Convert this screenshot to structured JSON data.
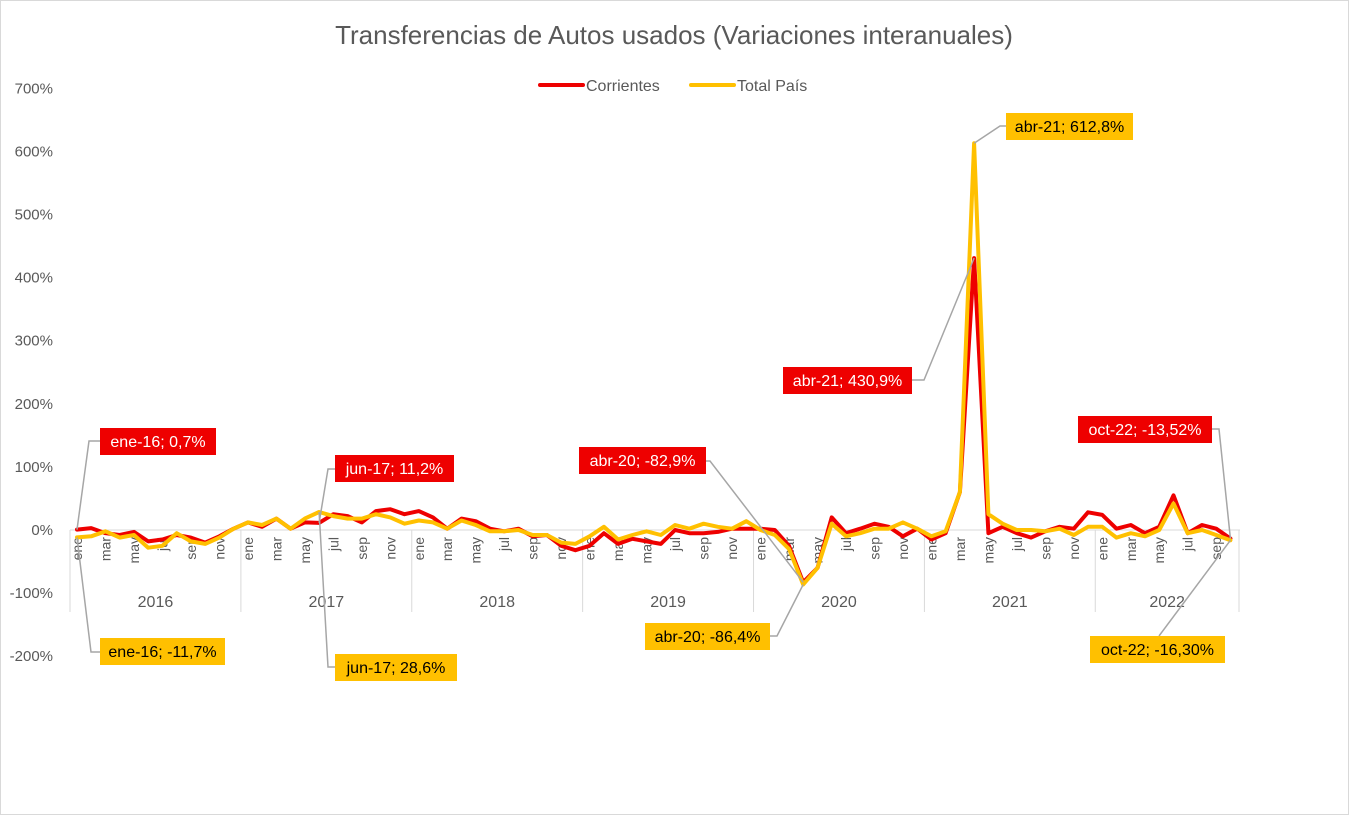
{
  "chart_data": {
    "type": "line",
    "title": "Transferencias de Autos usados (Variaciones interanuales)",
    "yticks": [
      "700%",
      "600%",
      "500%",
      "400%",
      "300%",
      "200%",
      "100%",
      "0%",
      "-100%",
      "-200%"
    ],
    "ylim": [
      -200,
      700
    ],
    "years": [
      "2016",
      "2017",
      "2018",
      "2019",
      "2020",
      "2021",
      "2022"
    ],
    "month_labels": [
      "ene",
      "mar",
      "may",
      "jul",
      "sep",
      "nov"
    ],
    "months_per_year": 12,
    "last_year_months": 10,
    "last_year_label_suffix": "sep",
    "legend_position": "top-center",
    "grid": false,
    "series": [
      {
        "name": "Corrientes",
        "color": "#ee0000",
        "values": [
          0.7,
          3,
          -5,
          -8,
          -3,
          -18,
          -15,
          -8,
          -12,
          -20,
          -10,
          2,
          12,
          5,
          18,
          2,
          12,
          11.2,
          25,
          22,
          12,
          30,
          33,
          25,
          30,
          20,
          2,
          18,
          14,
          2,
          -2,
          2,
          -10,
          -8,
          -25,
          -32,
          -25,
          -5,
          -22,
          -14,
          -18,
          -22,
          0,
          -5,
          -5,
          -3,
          2,
          2,
          2,
          0,
          -25,
          -82.9,
          -60,
          20,
          -5,
          2,
          10,
          5,
          -10,
          2,
          -15,
          -5,
          60,
          430.9,
          -5,
          5,
          -5,
          -12,
          -2,
          5,
          2,
          28,
          24,
          2,
          8,
          -5,
          5,
          55,
          -5,
          8,
          2,
          -13.52
        ]
      },
      {
        "name": "Total País",
        "color": "#ffc000",
        "values": [
          -11.7,
          -10,
          -2,
          -12,
          -8,
          -28,
          -25,
          -5,
          -18,
          -22,
          -12,
          2,
          12,
          8,
          18,
          2,
          18,
          28.6,
          22,
          18,
          18,
          25,
          20,
          10,
          15,
          12,
          2,
          15,
          8,
          -2,
          -2,
          0,
          -8,
          -8,
          -20,
          -22,
          -10,
          5,
          -15,
          -8,
          -2,
          -8,
          8,
          2,
          10,
          5,
          2,
          14,
          0,
          -8,
          -30,
          -86.4,
          -60,
          10,
          -10,
          -5,
          2,
          2,
          12,
          2,
          -10,
          -2,
          60,
          612.8,
          25,
          10,
          0,
          0,
          -2,
          2,
          -8,
          5,
          5,
          -12,
          -5,
          -10,
          0,
          42,
          -5,
          0,
          -8,
          -16.3
        ]
      }
    ],
    "annotations": [
      {
        "text": "ene-16; 0,7%",
        "series": 0,
        "index": 0
      },
      {
        "text": "ene-16; -11,7%",
        "series": 1,
        "index": 0
      },
      {
        "text": "jun-17; 11,2%",
        "series": 0,
        "index": 17
      },
      {
        "text": "jun-17; 28,6%",
        "series": 1,
        "index": 17
      },
      {
        "text": "abr-20; -82,9%",
        "series": 0,
        "index": 51
      },
      {
        "text": "abr-20; -86,4%",
        "series": 1,
        "index": 51
      },
      {
        "text": "abr-21; 612,8%",
        "series": 1,
        "index": 63
      },
      {
        "text": "abr-21; 430,9%",
        "series": 0,
        "index": 63
      },
      {
        "text": "oct-22; -13,52%",
        "series": 0,
        "index": 81
      },
      {
        "text": "oct-22; -16,30%",
        "series": 1,
        "index": 81
      }
    ]
  }
}
